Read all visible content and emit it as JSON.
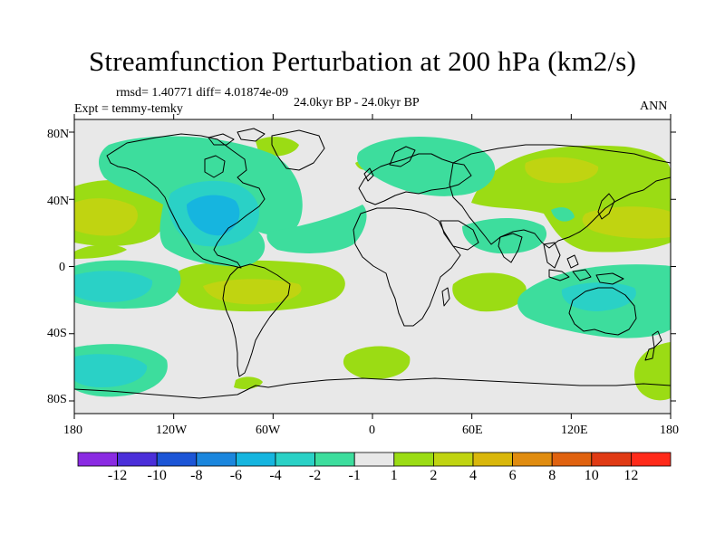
{
  "title": "Streamfunction Perturbation at 200 hPa (km2/s)",
  "stats": "rmsd= 1.40771 diff= 4.01874e-09",
  "experiment": "Expt = temmy-temky",
  "period": "24.0kyr BP - 24.0kyr BP",
  "season": "ANN",
  "lat_ticks": [
    "80N",
    "40N",
    "0",
    "40S",
    "80S"
  ],
  "lon_ticks": [
    "180",
    "120W",
    "60W",
    "0",
    "60E",
    "120E",
    "180"
  ],
  "colorbar": {
    "labels": [
      "-12",
      "-10",
      "-8",
      "-6",
      "-4",
      "-2",
      "-1",
      "1",
      "2",
      "4",
      "6",
      "8",
      "10",
      "12"
    ],
    "colors": [
      "#8a2be2",
      "#4b2fd9",
      "#1c55d6",
      "#1b86dd",
      "#16b5df",
      "#2ad1c6",
      "#3ddd9d",
      "#e8e8e8",
      "#9bdc14",
      "#c0d411",
      "#d9b70b",
      "#e08c10",
      "#e0620f",
      "#e03a14",
      "#ff2a1a"
    ]
  }
}
